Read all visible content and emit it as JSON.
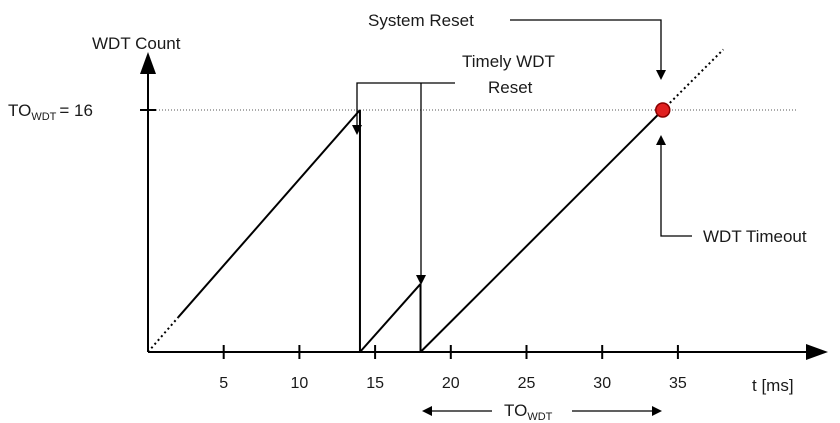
{
  "colors": {
    "line": "#000000",
    "threshold_line": "#555555",
    "timeout_marker_fill": "#e02020",
    "timeout_marker_stroke": "#8a0000"
  },
  "labels": {
    "y_axis": "WDT Count",
    "x_axis": "t [ms]",
    "threshold_main": "TO",
    "threshold_sub": "WDT",
    "threshold_value": "= 16",
    "system_reset": "System Reset",
    "timely_reset_line1": "Timely WDT",
    "timely_reset_line2": "Reset",
    "wdt_timeout": "WDT Timeout",
    "timeout_span_main": "TO",
    "timeout_span_sub": "WDT"
  },
  "x_ticks": [
    "5",
    "10",
    "15",
    "20",
    "25",
    "30",
    "35"
  ],
  "chart_data": {
    "type": "line",
    "x_unit": "ms",
    "threshold": 16,
    "xlim": [
      0,
      36
    ],
    "ylim": [
      0,
      16
    ],
    "series": [
      {
        "points": [
          [
            0,
            0
          ],
          [
            14,
            16
          ],
          [
            14,
            0
          ],
          [
            18,
            4.5
          ],
          [
            18,
            0
          ],
          [
            34,
            16
          ],
          [
            38,
            20
          ]
        ],
        "dotted_segments": [
          [
            [
              0,
              0
            ],
            [
              2,
              2.3
            ]
          ],
          [
            [
              34,
              16
            ],
            [
              38,
              20
            ]
          ]
        ]
      }
    ],
    "timely_resets_ms": [
      14,
      18
    ],
    "timeout_ms": 34
  }
}
